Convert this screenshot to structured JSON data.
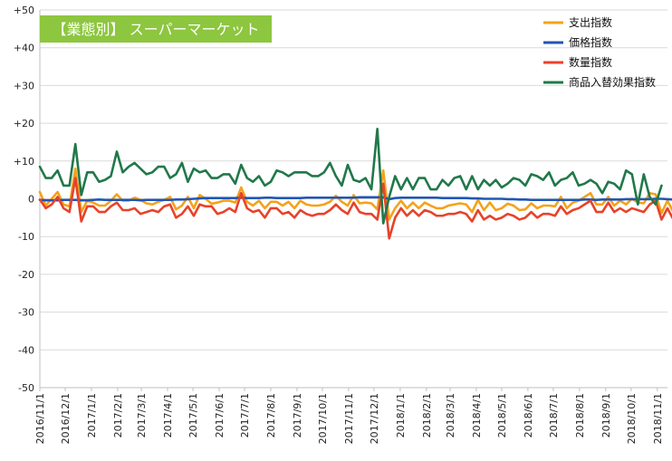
{
  "chart_data": {
    "type": "line",
    "title": "【業態別】 スーパーマーケット",
    "title_bg": "#8dc63f",
    "title_fg": "#ffffff",
    "ylim": [
      -50,
      50
    ],
    "ytick_values": [
      50,
      40,
      30,
      20,
      10,
      0,
      -10,
      -20,
      -30,
      -40,
      -50
    ],
    "ytick_labels": [
      "+50",
      "+40",
      "+30",
      "+20",
      "+10",
      "0",
      "-10",
      "-20",
      "-30",
      "-40",
      "-50"
    ],
    "grid": true,
    "legend_position": "top-right",
    "xtick_labels": [
      "2016/11/1",
      "2016/12/1",
      "2017/1/1",
      "2017/2/1",
      "2017/3/1",
      "2017/4/1",
      "2017/5/1",
      "2017/6/1",
      "2017/7/1",
      "2017/8/1",
      "2017/9/1",
      "2017/10/1",
      "2017/11/1",
      "2017/12/1",
      "2018/1/1",
      "2018/2/1",
      "2018/3/1",
      "2018/4/1",
      "2018/5/1",
      "2018/6/1",
      "2018/7/1",
      "2018/8/1",
      "2018/9/1",
      "2018/10/1",
      "2018/11/1"
    ],
    "x_start": "2016-11-01",
    "x_end": "2018-11-13",
    "x_step_days": 7,
    "series": [
      {
        "name": "支出指数",
        "color": "#f5a21b",
        "values": [
          1.8,
          -1.8,
          0.0,
          1.8,
          -1.5,
          -2.0,
          8.0,
          -3.5,
          -0.5,
          -1.0,
          -1.8,
          -1.8,
          -0.5,
          1.2,
          -0.5,
          -0.5,
          0.3,
          -0.3,
          -1.2,
          -1.5,
          -0.8,
          -0.3,
          0.5,
          -2.8,
          -1.8,
          0.5,
          -2.5,
          1.0,
          0.0,
          -1.3,
          -1.0,
          -0.5,
          -0.5,
          -1.0,
          3.0,
          -0.8,
          -1.8,
          -0.5,
          -2.5,
          -0.8,
          -0.8,
          -1.8,
          -0.8,
          -2.5,
          -0.5,
          -1.5,
          -1.8,
          -1.8,
          -1.5,
          -0.8,
          0.8,
          -0.8,
          -1.8,
          1.0,
          -1.2,
          -1.0,
          -1.2,
          -2.8,
          7.5,
          -5.5,
          -2.5,
          -0.5,
          -2.5,
          -1.0,
          -2.5,
          -1.0,
          -1.8,
          -2.5,
          -2.5,
          -1.8,
          -1.5,
          -1.2,
          -1.5,
          -3.5,
          -0.3,
          -3.0,
          -1.0,
          -3.0,
          -2.5,
          -1.3,
          -1.8,
          -3.0,
          -2.8,
          -1.2,
          -2.5,
          -1.8,
          -1.8,
          -2.0,
          0.5,
          -2.5,
          -1.0,
          -0.5,
          0.5,
          1.5,
          -1.5,
          -1.5,
          0.5,
          -1.8,
          -0.5,
          -1.5,
          0.0,
          -1.0,
          -1.2,
          1.5,
          1.2,
          -3.8,
          -0.5,
          -3.5,
          -5.5,
          -2.2
        ]
      },
      {
        "name": "価格指数",
        "color": "#2056b4",
        "values": [
          -0.3,
          -0.4,
          -0.4,
          -0.4,
          -0.3,
          -0.3,
          -0.3,
          -0.4,
          -0.4,
          -0.3,
          -0.2,
          -0.3,
          -0.3,
          -0.3,
          -0.3,
          -0.3,
          -0.3,
          -0.4,
          -0.3,
          -0.3,
          -0.3,
          -0.3,
          -0.3,
          -0.2,
          -0.2,
          -0.1,
          0.0,
          0.1,
          0.2,
          0.2,
          0.2,
          0.2,
          0.2,
          0.2,
          0.3,
          0.2,
          0.2,
          0.2,
          0.3,
          0.3,
          0.2,
          0.2,
          0.2,
          0.2,
          0.2,
          0.3,
          0.3,
          0.3,
          0.3,
          0.3,
          0.3,
          0.3,
          0.3,
          0.3,
          0.4,
          0.4,
          0.4,
          0.4,
          0.4,
          -0.1,
          0.2,
          0.3,
          0.3,
          0.3,
          0.3,
          0.3,
          0.3,
          0.3,
          0.2,
          0.2,
          0.2,
          0.2,
          0.2,
          0.1,
          0.1,
          0.0,
          0.0,
          0.0,
          0.0,
          -0.1,
          -0.1,
          -0.2,
          -0.2,
          -0.3,
          -0.3,
          -0.3,
          -0.3,
          -0.3,
          -0.3,
          -0.3,
          -0.3,
          -0.3,
          -0.2,
          -0.2,
          -0.3,
          -0.2,
          -0.2,
          -0.2,
          -0.2,
          -0.1,
          -0.1,
          -0.1,
          -0.1,
          -0.1,
          0.0,
          0.0,
          -0.1,
          -0.2,
          -0.2,
          -0.3
        ]
      },
      {
        "name": "数量指数",
        "color": "#e8422a",
        "values": [
          -0.2,
          -2.5,
          -1.5,
          0.5,
          -2.5,
          -3.5,
          5.5,
          -6.0,
          -2.0,
          -2.0,
          -3.5,
          -3.5,
          -2.0,
          -1.0,
          -3.0,
          -3.0,
          -2.5,
          -4.0,
          -3.5,
          -3.0,
          -3.5,
          -2.0,
          -1.5,
          -5.0,
          -4.0,
          -2.0,
          -4.5,
          -1.5,
          -2.0,
          -2.0,
          -4.0,
          -3.5,
          -2.5,
          -3.5,
          1.5,
          -2.5,
          -3.5,
          -3.0,
          -5.0,
          -2.5,
          -2.5,
          -4.0,
          -3.5,
          -5.0,
          -3.0,
          -4.0,
          -4.5,
          -4.0,
          -4.0,
          -3.0,
          -1.5,
          -3.0,
          -4.0,
          -1.0,
          -3.5,
          -4.0,
          -4.0,
          -5.5,
          4.0,
          -10.5,
          -5.0,
          -2.5,
          -4.5,
          -3.0,
          -4.5,
          -3.0,
          -3.5,
          -4.5,
          -4.5,
          -4.0,
          -4.0,
          -3.5,
          -4.0,
          -6.0,
          -3.0,
          -5.5,
          -4.5,
          -5.5,
          -5.0,
          -4.0,
          -4.5,
          -5.5,
          -5.0,
          -3.5,
          -5.0,
          -4.0,
          -4.0,
          -4.5,
          -2.0,
          -4.0,
          -3.0,
          -2.5,
          -1.5,
          -0.5,
          -3.5,
          -3.5,
          -1.0,
          -3.5,
          -2.5,
          -3.5,
          -2.5,
          -3.0,
          -3.5,
          -1.5,
          -0.5,
          -5.5,
          -2.5,
          -5.5,
          -7.0,
          -5.0
        ]
      },
      {
        "name": "商品入替効果指数",
        "color": "#21784a",
        "values": [
          8.5,
          5.5,
          5.5,
          7.5,
          3.5,
          3.5,
          14.5,
          1.0,
          7.0,
          7.0,
          4.5,
          5.0,
          6.0,
          12.5,
          7.0,
          8.5,
          9.5,
          8.0,
          6.5,
          7.0,
          8.5,
          8.5,
          5.5,
          6.5,
          9.5,
          4.5,
          8.0,
          7.0,
          7.5,
          5.5,
          5.5,
          6.5,
          6.5,
          4.0,
          9.0,
          5.5,
          4.5,
          6.0,
          3.5,
          4.5,
          7.5,
          7.0,
          6.0,
          7.0,
          7.0,
          7.0,
          6.0,
          6.0,
          7.0,
          9.5,
          6.0,
          3.5,
          9.0,
          5.0,
          4.5,
          5.5,
          2.5,
          18.5,
          -6.5,
          0.5,
          6.0,
          2.5,
          5.5,
          2.5,
          5.5,
          5.5,
          2.5,
          2.5,
          5.0,
          3.5,
          5.5,
          6.0,
          2.5,
          6.0,
          2.5,
          5.0,
          3.5,
          5.0,
          3.0,
          4.0,
          5.5,
          5.0,
          3.5,
          6.5,
          6.0,
          5.0,
          7.0,
          3.5,
          5.0,
          5.5,
          7.0,
          3.5,
          4.0,
          5.0,
          4.0,
          1.5,
          4.5,
          4.0,
          2.5,
          7.5,
          6.5,
          -1.5,
          6.5,
          0.5,
          -1.5,
          3.5
        ]
      }
    ]
  }
}
